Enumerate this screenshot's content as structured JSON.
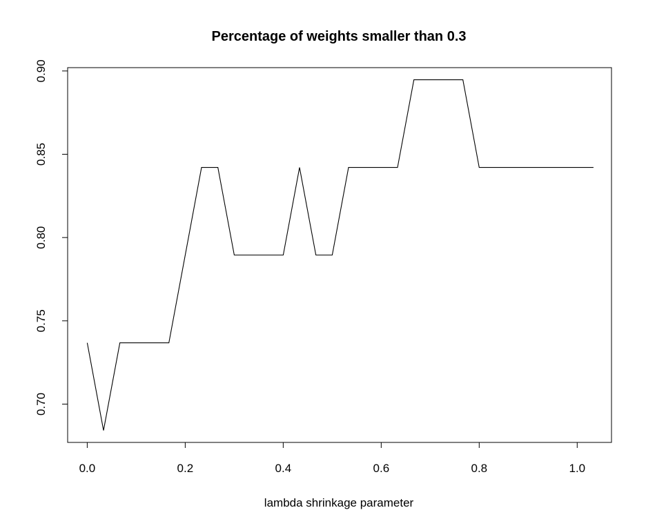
{
  "chart_data": {
    "type": "line",
    "title": "Percentage of weights smaller than 0.3",
    "xlabel": "lambda shrinkage parameter",
    "ylabel": "",
    "xlim": [
      -0.04,
      1.07
    ],
    "ylim": [
      0.677,
      0.902
    ],
    "xticks": [
      0.0,
      0.2,
      0.4,
      0.6,
      0.8,
      1.0
    ],
    "xtick_labels": [
      "0.0",
      "0.2",
      "0.4",
      "0.6",
      "0.8",
      "1.0"
    ],
    "yticks": [
      0.7,
      0.75,
      0.8,
      0.85,
      0.9
    ],
    "ytick_labels": [
      "0.70",
      "0.75",
      "0.80",
      "0.85",
      "0.90"
    ],
    "grid": false,
    "legend": "none",
    "line_color": "#000000",
    "series": [
      {
        "x": [
          0.0,
          0.0333,
          0.0667,
          0.1,
          0.1333,
          0.1667,
          0.2,
          0.2333,
          0.2667,
          0.3,
          0.3333,
          0.3667,
          0.4,
          0.4333,
          0.4667,
          0.5,
          0.5333,
          0.5667,
          0.6,
          0.6333,
          0.6667,
          0.7,
          0.7333,
          0.7667,
          0.8,
          0.8333,
          0.8667,
          0.9,
          0.9333,
          0.9667,
          1.0,
          1.0333
        ],
        "values": [
          0.7368,
          0.6842,
          0.7368,
          0.7368,
          0.7368,
          0.7368,
          0.7895,
          0.8421,
          0.8421,
          0.7895,
          0.7895,
          0.7895,
          0.7895,
          0.8421,
          0.7895,
          0.7895,
          0.8421,
          0.8421,
          0.8421,
          0.8421,
          0.8947,
          0.8947,
          0.8947,
          0.8947,
          0.8421,
          0.8421,
          0.8421,
          0.8421,
          0.8421,
          0.8421,
          0.8421,
          0.8421
        ]
      }
    ]
  }
}
